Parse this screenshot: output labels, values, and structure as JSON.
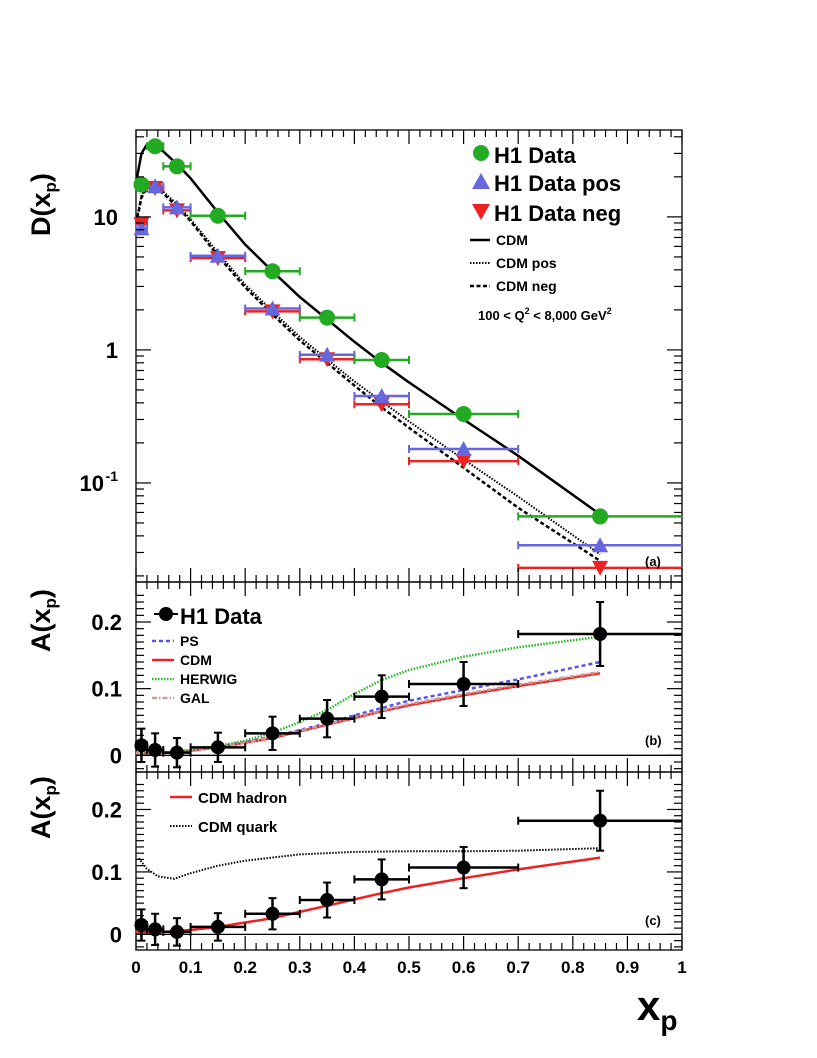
{
  "panels": {
    "a_label": "(a)",
    "b_label": "(b)",
    "c_label": "(c)"
  },
  "axes": {
    "ylabel_a": "D(x",
    "ylabel_a_sub": "p",
    "ylabel_a_close": ")",
    "ylabel_b": "A(x",
    "ylabel_b_sub": "p",
    "ylabel_b_close": ")",
    "xlabel": "x",
    "xlabel_sub": "p",
    "y_a_ticks": [
      "10",
      "1",
      "10",
      "-1"
    ],
    "y_bc_ticks": [
      "0.2",
      "0.1",
      "0"
    ],
    "x_ticks": [
      "0",
      "0.1",
      "0.2",
      "0.3",
      "0.4",
      "0.5",
      "0.6",
      "0.7",
      "0.8",
      "0.9",
      "1"
    ]
  },
  "legend_a": {
    "h1": "H1 Data",
    "pos": "H1 Data pos",
    "neg": "H1 Data neg",
    "cdm": "CDM",
    "cdm_pos": "CDM pos",
    "cdm_neg": "CDM neg",
    "q2_range": "100 < Q",
    "q2_sup": "2",
    "q2_range_end": " < 8,000 GeV",
    "q2_unit_sup": "2"
  },
  "legend_b": {
    "h1": "H1 Data",
    "ps": "PS",
    "cdm": "CDM",
    "herwig": "HERWIG",
    "gal": "GAL"
  },
  "legend_c": {
    "hadron": "CDM hadron",
    "quark": "CDM quark"
  },
  "colors": {
    "h1": "#22aa22",
    "pos": "#6666dd",
    "neg": "#ee2222",
    "black": "#000000",
    "ps": "#5555ee",
    "cdm": "#ee2222",
    "herwig": "#22bb22",
    "gal": "#cc9999"
  },
  "chart_data": [
    {
      "panel": "a",
      "type": "scatter",
      "y_scale": "log",
      "xlim": [
        0,
        1
      ],
      "ylim": [
        0.018,
        45
      ],
      "series": [
        {
          "name": "H1 Data",
          "x": [
            0.01,
            0.035,
            0.075,
            0.15,
            0.25,
            0.35,
            0.45,
            0.6,
            0.85
          ],
          "xerr": [
            0.01,
            0.015,
            0.025,
            0.05,
            0.05,
            0.05,
            0.05,
            0.1,
            0.15
          ],
          "y": [
            17.5,
            34.0,
            24.0,
            10.2,
            3.9,
            1.75,
            0.84,
            0.33,
            0.056
          ]
        },
        {
          "name": "H1 Data pos",
          "x": [
            0.01,
            0.035,
            0.075,
            0.15,
            0.25,
            0.35,
            0.45,
            0.6,
            0.85
          ],
          "xerr": [
            0.01,
            0.015,
            0.025,
            0.05,
            0.05,
            0.05,
            0.05,
            0.1,
            0.15
          ],
          "y": [
            8.2,
            17.0,
            11.8,
            5.1,
            2.05,
            0.92,
            0.45,
            0.18,
            0.034
          ]
        },
        {
          "name": "H1 Data neg",
          "x": [
            0.01,
            0.035,
            0.075,
            0.15,
            0.25,
            0.35,
            0.45,
            0.6,
            0.85
          ],
          "xerr": [
            0.01,
            0.015,
            0.025,
            0.05,
            0.05,
            0.05,
            0.05,
            0.1,
            0.15
          ],
          "y": [
            8.8,
            16.5,
            11.2,
            4.9,
            1.95,
            0.85,
            0.39,
            0.146,
            0.023
          ]
        }
      ],
      "curves": [
        {
          "name": "CDM",
          "x": [
            0.0,
            0.01,
            0.02,
            0.035,
            0.05,
            0.075,
            0.1,
            0.15,
            0.2,
            0.25,
            0.3,
            0.35,
            0.4,
            0.45,
            0.5,
            0.6,
            0.7,
            0.85
          ],
          "y": [
            18,
            30,
            35,
            34,
            31,
            25,
            19.5,
            10.8,
            6.2,
            3.9,
            2.5,
            1.7,
            1.15,
            0.8,
            0.57,
            0.3,
            0.16,
            0.058
          ]
        },
        {
          "name": "CDM pos",
          "x": [
            0.0,
            0.01,
            0.02,
            0.035,
            0.05,
            0.075,
            0.1,
            0.15,
            0.2,
            0.25,
            0.3,
            0.35,
            0.4,
            0.45,
            0.5,
            0.6,
            0.7,
            0.85
          ],
          "y": [
            9,
            14.5,
            17,
            17,
            15.5,
            12.5,
            9.6,
            5.4,
            3.1,
            1.95,
            1.25,
            0.85,
            0.58,
            0.41,
            0.29,
            0.15,
            0.079,
            0.029
          ]
        },
        {
          "name": "CDM neg",
          "x": [
            0.0,
            0.01,
            0.02,
            0.035,
            0.05,
            0.075,
            0.1,
            0.15,
            0.2,
            0.25,
            0.3,
            0.35,
            0.4,
            0.45,
            0.5,
            0.6,
            0.7,
            0.85
          ],
          "y": [
            8.8,
            14,
            16.5,
            16.5,
            15,
            12,
            9.3,
            5.1,
            2.95,
            1.85,
            1.18,
            0.8,
            0.54,
            0.37,
            0.26,
            0.13,
            0.065,
            0.026
          ]
        }
      ]
    },
    {
      "panel": "b",
      "type": "scatter",
      "xlim": [
        0,
        1
      ],
      "ylim": [
        -0.025,
        0.26
      ],
      "series": [
        {
          "name": "H1 Data",
          "x": [
            0.01,
            0.035,
            0.075,
            0.15,
            0.25,
            0.35,
            0.45,
            0.6,
            0.85
          ],
          "xerr": [
            0.01,
            0.015,
            0.025,
            0.05,
            0.05,
            0.05,
            0.05,
            0.1,
            0.15
          ],
          "y": [
            0.015,
            0.008,
            0.004,
            0.012,
            0.033,
            0.055,
            0.088,
            0.107,
            0.182
          ],
          "yerr": [
            0.025,
            0.025,
            0.022,
            0.022,
            0.025,
            0.028,
            0.032,
            0.033,
            0.048
          ]
        }
      ],
      "curves": [
        {
          "name": "PS",
          "x": [
            0.0,
            0.05,
            0.1,
            0.15,
            0.2,
            0.25,
            0.3,
            0.35,
            0.4,
            0.45,
            0.5,
            0.6,
            0.7,
            0.85
          ],
          "y": [
            0.003,
            0.004,
            0.007,
            0.013,
            0.02,
            0.028,
            0.038,
            0.048,
            0.06,
            0.071,
            0.082,
            0.098,
            0.114,
            0.14
          ]
        },
        {
          "name": "CDM",
          "x": [
            0.0,
            0.05,
            0.1,
            0.15,
            0.2,
            0.25,
            0.3,
            0.35,
            0.4,
            0.45,
            0.5,
            0.6,
            0.7,
            0.85
          ],
          "y": [
            0.003,
            0.004,
            0.007,
            0.012,
            0.019,
            0.026,
            0.036,
            0.046,
            0.056,
            0.066,
            0.075,
            0.09,
            0.104,
            0.123
          ]
        },
        {
          "name": "HERWIG",
          "x": [
            0.0,
            0.05,
            0.1,
            0.15,
            0.2,
            0.25,
            0.3,
            0.35,
            0.4,
            0.45,
            0.5,
            0.6,
            0.7,
            0.85
          ],
          "y": [
            0.003,
            0.004,
            0.008,
            0.014,
            0.022,
            0.034,
            0.05,
            0.068,
            0.092,
            0.113,
            0.128,
            0.148,
            0.162,
            0.178
          ]
        },
        {
          "name": "GAL",
          "x": [
            0.0,
            0.05,
            0.1,
            0.15,
            0.2,
            0.25,
            0.3,
            0.35,
            0.4,
            0.45,
            0.5,
            0.6,
            0.7,
            0.85
          ],
          "y": [
            0.003,
            0.004,
            0.007,
            0.012,
            0.019,
            0.027,
            0.037,
            0.047,
            0.057,
            0.067,
            0.077,
            0.092,
            0.106,
            0.125
          ]
        }
      ]
    },
    {
      "panel": "c",
      "type": "scatter",
      "xlim": [
        0,
        1
      ],
      "ylim": [
        -0.025,
        0.26
      ],
      "series": [
        {
          "name": "H1 Data",
          "x": [
            0.01,
            0.035,
            0.075,
            0.15,
            0.25,
            0.35,
            0.45,
            0.6,
            0.85
          ],
          "xerr": [
            0.01,
            0.015,
            0.025,
            0.05,
            0.05,
            0.05,
            0.05,
            0.1,
            0.15
          ],
          "y": [
            0.015,
            0.008,
            0.004,
            0.012,
            0.033,
            0.055,
            0.088,
            0.107,
            0.182
          ],
          "yerr": [
            0.025,
            0.025,
            0.022,
            0.022,
            0.025,
            0.028,
            0.032,
            0.033,
            0.048
          ]
        }
      ],
      "curves": [
        {
          "name": "CDM hadron",
          "x": [
            0.0,
            0.05,
            0.1,
            0.15,
            0.2,
            0.25,
            0.3,
            0.35,
            0.4,
            0.45,
            0.5,
            0.6,
            0.7,
            0.85
          ],
          "y": [
            0.003,
            0.004,
            0.007,
            0.012,
            0.019,
            0.026,
            0.036,
            0.046,
            0.056,
            0.066,
            0.075,
            0.09,
            0.104,
            0.123
          ]
        },
        {
          "name": "CDM quark",
          "x": [
            0.005,
            0.02,
            0.04,
            0.07,
            0.1,
            0.15,
            0.2,
            0.3,
            0.4,
            0.5,
            0.6,
            0.7,
            0.85
          ],
          "y": [
            0.122,
            0.105,
            0.093,
            0.089,
            0.098,
            0.11,
            0.118,
            0.128,
            0.132,
            0.133,
            0.133,
            0.134,
            0.138
          ]
        }
      ]
    }
  ]
}
